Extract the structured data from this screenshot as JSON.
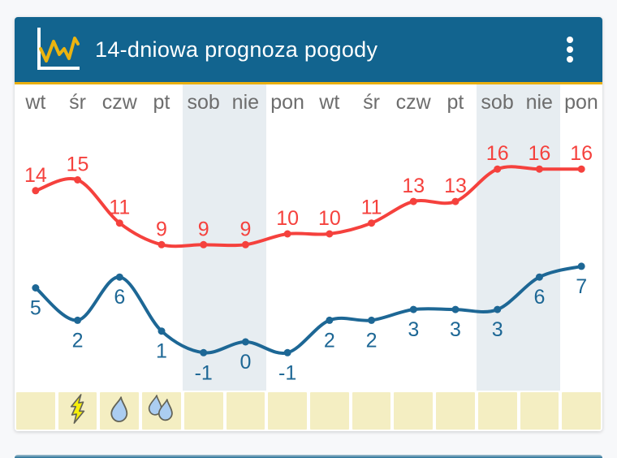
{
  "header": {
    "title": "14-dniowa prognoza pogody",
    "left_icon": "line-chart-icon",
    "right_icon": "kebab-menu-icon"
  },
  "days": [
    "wt",
    "śr",
    "czw",
    "pt",
    "sob",
    "nie",
    "pon",
    "wt",
    "śr",
    "czw",
    "pt",
    "sob",
    "nie",
    "pon"
  ],
  "chart_data": {
    "type": "line",
    "title": "14-dniowa prognoza pogody",
    "categories": [
      "wt",
      "śr",
      "czw",
      "pt",
      "sob",
      "nie",
      "pon",
      "wt",
      "śr",
      "czw",
      "pt",
      "sob",
      "nie",
      "pon"
    ],
    "series": [
      {
        "name": "max-temperature",
        "color": "#f5413d",
        "label_position": "above",
        "values": [
          14,
          15,
          11,
          9,
          9,
          9,
          10,
          10,
          11,
          13,
          13,
          16,
          16,
          16
        ]
      },
      {
        "name": "min-temperature",
        "color": "#1d6795",
        "label_position": "below",
        "values": [
          5,
          2,
          6,
          1,
          -1,
          0,
          -1,
          2,
          2,
          3,
          3,
          3,
          6,
          7
        ]
      }
    ],
    "weekend_band_columns": [
      4,
      5,
      11,
      12
    ],
    "grid": false,
    "value_labels": true,
    "legend": "none"
  },
  "precipitation_row": {
    "icons": [
      "",
      "storm-icon",
      "rain-drop-icon",
      "heavy-rain-icon",
      "",
      "",
      "",
      "",
      "",
      "",
      "",
      "",
      "",
      ""
    ]
  },
  "colors": {
    "page_bg": "#f7f8fa",
    "card_bg": "#ffffff",
    "header_bg": "#12648f",
    "header_underline": "#e9af10",
    "weekend_band": "#e7edf1",
    "day_label": "#6d6d6d",
    "precip_cell": "#f4eec2",
    "max_line": "#f5413d",
    "min_line": "#1d6795",
    "bolt_fill": "#f6ee0a",
    "drop_fill": "#abcdf1",
    "icon_outline": "#636357",
    "header_icon_axes": "#ffffff",
    "header_icon_zigzag": "#ebb410"
  }
}
